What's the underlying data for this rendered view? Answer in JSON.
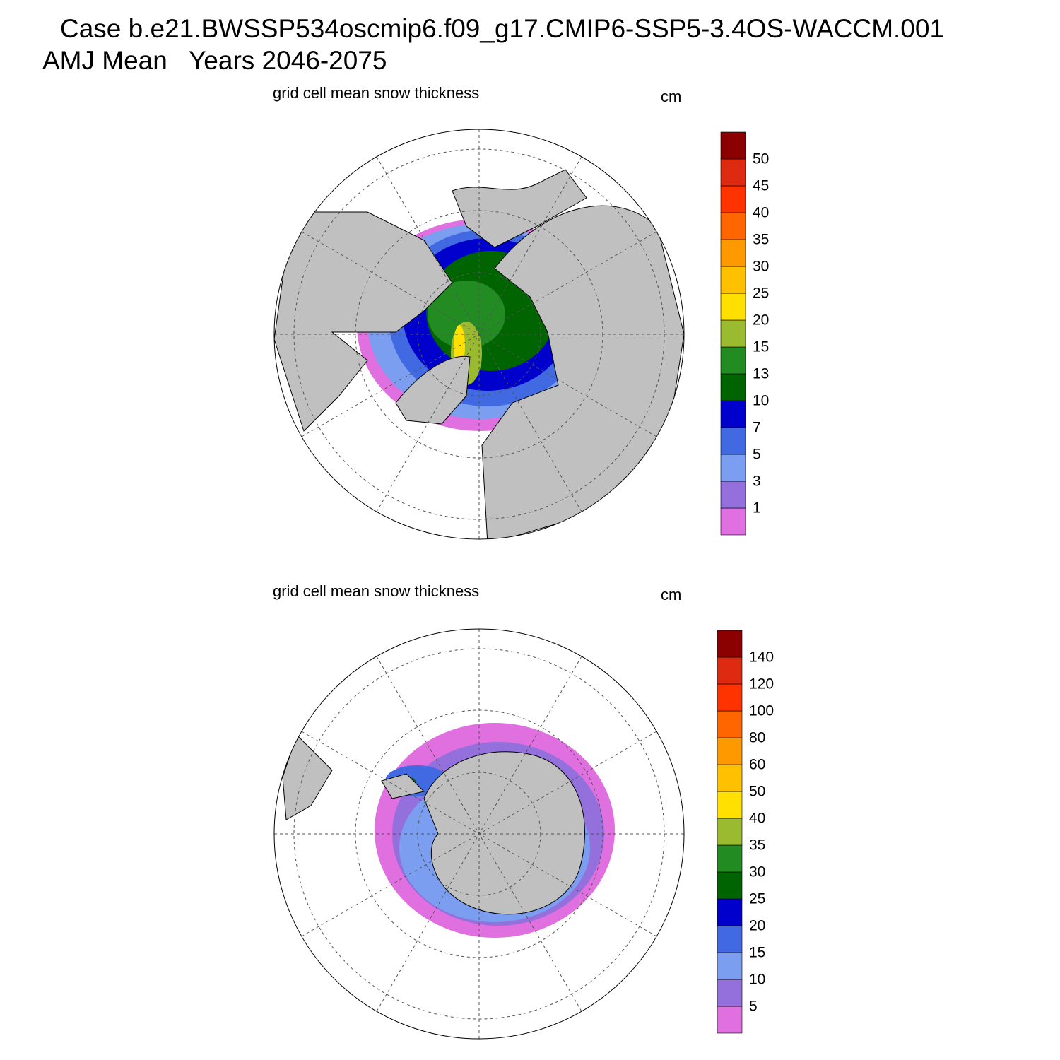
{
  "header": {
    "line1": "Case b.e21.BWSSP534oscmip6.f09_g17.CMIP6-SSP5-3.4OS-WACCM.001",
    "line2": "AMJ Mean   Years 2046-2075"
  },
  "colors": [
    "#e070e0",
    "#9370db",
    "#7b9ef0",
    "#4169e1",
    "#0000cd",
    "#006400",
    "#228b22",
    "#9aba30",
    "#ffe000",
    "#ffc000",
    "#ff9900",
    "#ff6600",
    "#ff3300",
    "#dd2a10",
    "#8b0000"
  ],
  "panels": [
    {
      "title": "grid cell mean snow thickness",
      "units": "cm",
      "levels": [
        1,
        3,
        5,
        7,
        10,
        13,
        15,
        20,
        25,
        30,
        35,
        40,
        45,
        50
      ]
    },
    {
      "title": "grid cell mean snow thickness",
      "units": "cm",
      "levels": [
        5,
        10,
        15,
        20,
        25,
        30,
        35,
        40,
        50,
        60,
        80,
        100,
        120,
        140
      ]
    }
  ]
}
